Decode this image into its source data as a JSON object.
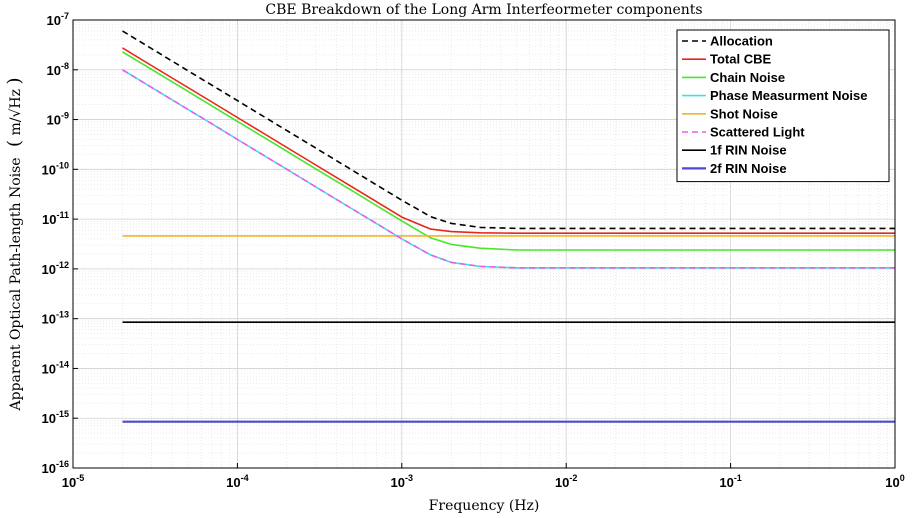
{
  "chart_data": {
    "type": "line",
    "title": "CBE Breakdown of the Long Arm Interfeormeter components",
    "xlabel": "Frequency (Hz)",
    "ylabel": "Apparent Optical Path-length Noise",
    "ylabel_unit": "m/√Hz",
    "x_scale": "log",
    "y_scale": "log",
    "xlim": [
      1e-05,
      1
    ],
    "ylim": [
      1e-16,
      1e-07
    ],
    "grid": "major and minor",
    "legend_position": "top-right",
    "x_ticks": [
      {
        "value": 1e-05,
        "base": "10",
        "exp": "-5"
      },
      {
        "value": 0.0001,
        "base": "10",
        "exp": "-4"
      },
      {
        "value": 0.001,
        "base": "10",
        "exp": "-3"
      },
      {
        "value": 0.01,
        "base": "10",
        "exp": "-2"
      },
      {
        "value": 0.1,
        "base": "10",
        "exp": "-1"
      },
      {
        "value": 1,
        "base": "10",
        "exp": "0"
      }
    ],
    "y_ticks": [
      {
        "value": 1e-16,
        "base": "10",
        "exp": "-16"
      },
      {
        "value": 1e-15,
        "base": "10",
        "exp": "-15"
      },
      {
        "value": 1e-14,
        "base": "10",
        "exp": "-14"
      },
      {
        "value": 1e-13,
        "base": "10",
        "exp": "-13"
      },
      {
        "value": 1e-12,
        "base": "10",
        "exp": "-12"
      },
      {
        "value": 1e-11,
        "base": "10",
        "exp": "-11"
      },
      {
        "value": 1e-10,
        "base": "10",
        "exp": "-10"
      },
      {
        "value": 1e-09,
        "base": "10",
        "exp": "-9"
      },
      {
        "value": 1e-08,
        "base": "10",
        "exp": "-8"
      },
      {
        "value": 1e-07,
        "base": "10",
        "exp": "-7"
      }
    ],
    "x": [
      2e-05,
      3e-05,
      5e-05,
      7e-05,
      0.0001,
      0.00015,
      0.0002,
      0.0003,
      0.0005,
      0.0007,
      0.001,
      0.0015,
      0.002,
      0.003,
      0.005,
      0.007,
      0.01,
      0.02,
      0.05,
      0.1,
      0.2,
      0.5,
      1
    ],
    "series": [
      {
        "name": "Allocation",
        "color": "#000000",
        "dash": "6,4",
        "width": 1.6,
        "values": [
          6e-08,
          2.67e-08,
          9.6e-09,
          4.9e-09,
          2.4e-09,
          1.07e-09,
          6e-10,
          2.67e-10,
          9.6e-11,
          4.9e-11,
          2.4e-11,
          1.12e-11,
          8.2e-12,
          6.8e-12,
          6.5e-12,
          6.5e-12,
          6.5e-12,
          6.5e-12,
          6.5e-12,
          6.5e-12,
          6.5e-12,
          6.5e-12,
          6.5e-12
        ]
      },
      {
        "name": "Total CBE",
        "color": "#e8271c",
        "dash": "",
        "width": 1.6,
        "values": [
          2.75e-08,
          1.22e-08,
          4.4e-09,
          2.25e-09,
          1.1e-09,
          4.9e-10,
          2.75e-10,
          1.22e-10,
          4.4e-11,
          2.25e-11,
          1.1e-11,
          6.3e-12,
          5.6e-12,
          5.3e-12,
          5.2e-12,
          5.2e-12,
          5.2e-12,
          5.2e-12,
          5.2e-12,
          5.2e-12,
          5.2e-12,
          5.2e-12,
          5.2e-12
        ]
      },
      {
        "name": "Chain Noise",
        "color": "#47e62a",
        "dash": "",
        "width": 1.6,
        "values": [
          2.3e-08,
          1.02e-08,
          3.7e-09,
          1.88e-09,
          9.2e-10,
          4.1e-10,
          2.3e-10,
          1.02e-10,
          3.7e-11,
          1.88e-11,
          9.2e-12,
          4.2e-12,
          3.1e-12,
          2.6e-12,
          2.4e-12,
          2.4e-12,
          2.4e-12,
          2.4e-12,
          2.4e-12,
          2.4e-12,
          2.4e-12,
          2.4e-12,
          2.4e-12
        ]
      },
      {
        "name": "Phase Measurment Noise",
        "color": "#3fe0e8",
        "dash": "",
        "width": 1.6,
        "values": [
          1e-08,
          4.44e-09,
          1.6e-09,
          8.2e-10,
          4e-10,
          1.78e-10,
          1e-10,
          4.44e-11,
          1.6e-11,
          8.2e-12,
          4e-12,
          1.9e-12,
          1.35e-12,
          1.12e-12,
          1.05e-12,
          1.05e-12,
          1.05e-12,
          1.05e-12,
          1.05e-12,
          1.05e-12,
          1.05e-12,
          1.05e-12,
          1.05e-12
        ]
      },
      {
        "name": "Shot Noise",
        "color": "#f5b324",
        "dash": "",
        "width": 1.6,
        "values": [
          4.6e-12,
          4.6e-12,
          4.6e-12,
          4.6e-12,
          4.6e-12,
          4.6e-12,
          4.6e-12,
          4.6e-12,
          4.6e-12,
          4.6e-12,
          4.6e-12,
          4.6e-12,
          4.6e-12,
          4.6e-12,
          4.6e-12,
          4.6e-12,
          4.6e-12,
          4.6e-12,
          4.6e-12,
          4.6e-12,
          4.6e-12,
          4.6e-12,
          4.6e-12
        ]
      },
      {
        "name": "Scattered Light",
        "color": "#f05ae6",
        "dash": "6,4",
        "width": 1.6,
        "values": [
          1e-08,
          4.44e-09,
          1.6e-09,
          8.2e-10,
          4e-10,
          1.78e-10,
          1e-10,
          4.44e-11,
          1.6e-11,
          8.2e-12,
          4e-12,
          1.9e-12,
          1.35e-12,
          1.12e-12,
          1.05e-12,
          1.05e-12,
          1.05e-12,
          1.05e-12,
          1.05e-12,
          1.05e-12,
          1.05e-12,
          1.05e-12,
          1.05e-12
        ]
      },
      {
        "name": "1f RIN Noise",
        "color": "#000000",
        "dash": "",
        "width": 1.6,
        "values": [
          8.5e-14,
          8.5e-14,
          8.5e-14,
          8.5e-14,
          8.5e-14,
          8.5e-14,
          8.5e-14,
          8.5e-14,
          8.5e-14,
          8.5e-14,
          8.5e-14,
          8.5e-14,
          8.5e-14,
          8.5e-14,
          8.5e-14,
          8.5e-14,
          8.5e-14,
          8.5e-14,
          8.5e-14,
          8.5e-14,
          8.5e-14,
          8.5e-14,
          8.5e-14
        ]
      },
      {
        "name": "2f RIN Noise",
        "color": "#4a4ad6",
        "dash": "",
        "width": 2.2,
        "values": [
          8.5e-16,
          8.5e-16,
          8.5e-16,
          8.5e-16,
          8.5e-16,
          8.5e-16,
          8.5e-16,
          8.5e-16,
          8.5e-16,
          8.5e-16,
          8.5e-16,
          8.5e-16,
          8.5e-16,
          8.5e-16,
          8.5e-16,
          8.5e-16,
          8.5e-16,
          8.5e-16,
          8.5e-16,
          8.5e-16,
          8.5e-16,
          8.5e-16,
          8.5e-16
        ]
      }
    ]
  }
}
